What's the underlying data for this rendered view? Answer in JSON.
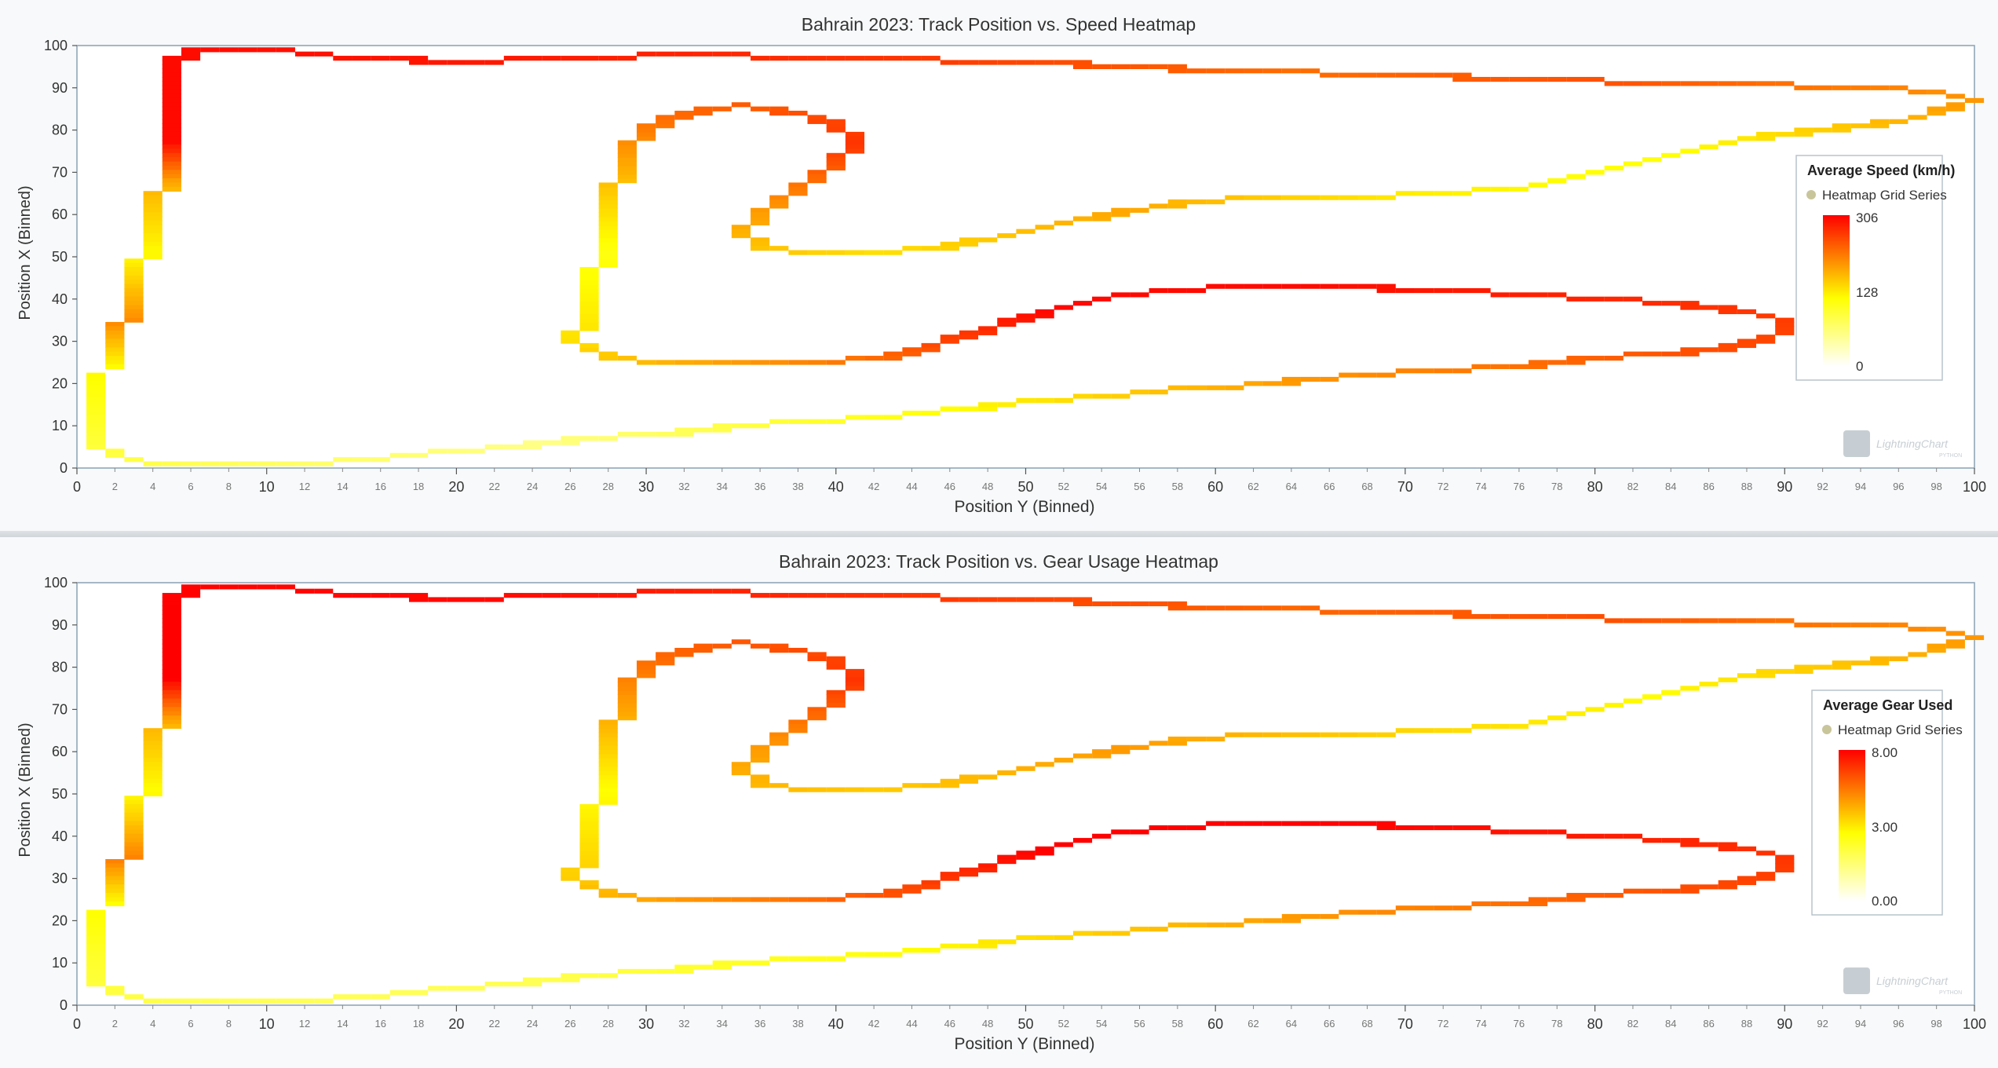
{
  "chart_data": [
    {
      "type": "heatmap",
      "title": "Bahrain 2023: Track Position vs. Speed Heatmap",
      "xlabel": "Position Y (Binned)",
      "ylabel": "Position X (Binned)",
      "xlim": [
        0,
        100
      ],
      "ylim": [
        0,
        100
      ],
      "x_ticks_major": [
        "0",
        "10",
        "20",
        "30",
        "40",
        "50",
        "60",
        "70",
        "80",
        "90",
        "100"
      ],
      "x_ticks_minor": [
        "2",
        "4",
        "6",
        "8",
        "12",
        "14",
        "16",
        "18",
        "22",
        "24",
        "26",
        "28",
        "32",
        "34",
        "36",
        "38",
        "42",
        "44",
        "46",
        "48",
        "52",
        "54",
        "56",
        "58",
        "62",
        "64",
        "66",
        "68",
        "72",
        "74",
        "76",
        "78",
        "82",
        "84",
        "86",
        "88",
        "92",
        "94",
        "96",
        "98"
      ],
      "y_ticks": [
        "0",
        "10",
        "20",
        "30",
        "40",
        "50",
        "60",
        "70",
        "80",
        "90",
        "100"
      ],
      "legend": {
        "title": "Average Speed (km/h)",
        "series_name": "Heatmap Grid Series",
        "max_label": "306",
        "mid_label": "128",
        "min_label": "0",
        "placement": "right"
      },
      "color_scale": {
        "min": 0,
        "mid": 128,
        "max": 306
      },
      "grid": false,
      "track_trace": [
        [
          1,
          22
        ],
        [
          1,
          10
        ],
        [
          1,
          5
        ],
        [
          2,
          3
        ],
        [
          4,
          1
        ],
        [
          6,
          0.5
        ],
        [
          9,
          0.5
        ],
        [
          12,
          1
        ],
        [
          15,
          2
        ],
        [
          19,
          3.5
        ],
        [
          23,
          5
        ],
        [
          27,
          7
        ],
        [
          31,
          8
        ],
        [
          35,
          10
        ],
        [
          39,
          11
        ],
        [
          42,
          12
        ],
        [
          46,
          13.5
        ],
        [
          50,
          15.5
        ],
        [
          54,
          17
        ],
        [
          58,
          18.5
        ],
        [
          63,
          20
        ],
        [
          68,
          22
        ],
        [
          72,
          23
        ],
        [
          76,
          24
        ],
        [
          80,
          26
        ],
        [
          84,
          27
        ],
        [
          88,
          29
        ],
        [
          90,
          32
        ],
        [
          90,
          35
        ],
        [
          88,
          37
        ],
        [
          84,
          39
        ],
        [
          78,
          40.5
        ],
        [
          72,
          42
        ],
        [
          66,
          43
        ],
        [
          60,
          42.5
        ],
        [
          55,
          41
        ],
        [
          52,
          38
        ],
        [
          49,
          34
        ],
        [
          46,
          30
        ],
        [
          44,
          27
        ],
        [
          41,
          25.5
        ],
        [
          37,
          24.5
        ],
        [
          33,
          24.5
        ],
        [
          30,
          25
        ],
        [
          28,
          26
        ],
        [
          27,
          28
        ],
        [
          26,
          31
        ],
        [
          27,
          35
        ],
        [
          27,
          40
        ],
        [
          27,
          45
        ],
        [
          28,
          50
        ],
        [
          28,
          55
        ],
        [
          28,
          60
        ],
        [
          28,
          65
        ],
        [
          29,
          70
        ],
        [
          29,
          75
        ],
        [
          30,
          80
        ],
        [
          32,
          84
        ],
        [
          35,
          85.5
        ],
        [
          38,
          84
        ],
        [
          40,
          81
        ],
        [
          41,
          77
        ],
        [
          40,
          73
        ],
        [
          39,
          69
        ],
        [
          38,
          66
        ],
        [
          37,
          63
        ],
        [
          36,
          60
        ],
        [
          35,
          56
        ],
        [
          36,
          52
        ],
        [
          39,
          51
        ],
        [
          42,
          51
        ],
        [
          45,
          52
        ],
        [
          49,
          55
        ],
        [
          53,
          59
        ],
        [
          57,
          62
        ],
        [
          62,
          64
        ],
        [
          68,
          64
        ],
        [
          72,
          65
        ],
        [
          76,
          66
        ],
        [
          80,
          70
        ],
        [
          84,
          74
        ],
        [
          88,
          78
        ],
        [
          92,
          80
        ],
        [
          96,
          82
        ],
        [
          98,
          84
        ],
        [
          100,
          87
        ],
        [
          98,
          89
        ],
        [
          94,
          90
        ],
        [
          90,
          90.5
        ],
        [
          85,
          91
        ],
        [
          80,
          91.5
        ],
        [
          75,
          92
        ],
        [
          70,
          93
        ],
        [
          65,
          93.5
        ],
        [
          60,
          94
        ],
        [
          55,
          95
        ],
        [
          50,
          96
        ],
        [
          45,
          96.5
        ],
        [
          40,
          97
        ],
        [
          35,
          97.5
        ],
        [
          30,
          97.5
        ],
        [
          25,
          97
        ],
        [
          20,
          96
        ],
        [
          15,
          97
        ],
        [
          11,
          98.5
        ],
        [
          8,
          99
        ],
        [
          6,
          98.5
        ],
        [
          5,
          96
        ],
        [
          5,
          92
        ],
        [
          5,
          87
        ],
        [
          4.5,
          82
        ],
        [
          4.5,
          76
        ],
        [
          4.5,
          70
        ],
        [
          4.5,
          66
        ],
        [
          3.5,
          60
        ],
        [
          3.5,
          55
        ],
        [
          3.5,
          50
        ],
        [
          2.5,
          45
        ],
        [
          2.5,
          40
        ],
        [
          2.5,
          35
        ],
        [
          1.5,
          32
        ],
        [
          1.5,
          28
        ],
        [
          1.5,
          24
        ]
      ],
      "speed_profile": [
        [
          0,
          130
        ],
        [
          2,
          110
        ],
        [
          5,
          80
        ],
        [
          8,
          60
        ],
        [
          12,
          120
        ],
        [
          16,
          200
        ],
        [
          20,
          250
        ],
        [
          24,
          280
        ],
        [
          27,
          300
        ],
        [
          30,
          300
        ],
        [
          33,
          220
        ],
        [
          36,
          150
        ],
        [
          40,
          120
        ],
        [
          43,
          170
        ],
        [
          46,
          230
        ],
        [
          49,
          270
        ],
        [
          52,
          200
        ],
        [
          55,
          150
        ],
        [
          58,
          190
        ],
        [
          61,
          140
        ],
        [
          64,
          120
        ],
        [
          68,
          200
        ],
        [
          72,
          250
        ],
        [
          75,
          230
        ],
        [
          79,
          270
        ],
        [
          83,
          290
        ],
        [
          87,
          300
        ],
        [
          90,
          300
        ],
        [
          92,
          180
        ],
        [
          95,
          130
        ],
        [
          98,
          210
        ],
        [
          100,
          130
        ]
      ]
    },
    {
      "type": "heatmap",
      "title": "Bahrain 2023: Track Position vs. Gear Usage Heatmap",
      "xlabel": "Position Y (Binned)",
      "ylabel": "Position X (Binned)",
      "xlim": [
        0,
        100
      ],
      "ylim": [
        0,
        100
      ],
      "x_ticks_major": [
        "0",
        "10",
        "20",
        "30",
        "40",
        "50",
        "60",
        "70",
        "80",
        "90",
        "100"
      ],
      "x_ticks_minor": [
        "2",
        "4",
        "6",
        "8",
        "12",
        "14",
        "16",
        "18",
        "22",
        "24",
        "26",
        "28",
        "32",
        "34",
        "36",
        "38",
        "42",
        "44",
        "46",
        "48",
        "52",
        "54",
        "56",
        "58",
        "62",
        "64",
        "66",
        "68",
        "72",
        "74",
        "76",
        "78",
        "82",
        "84",
        "86",
        "88",
        "92",
        "94",
        "96",
        "98"
      ],
      "y_ticks": [
        "0",
        "10",
        "20",
        "30",
        "40",
        "50",
        "60",
        "70",
        "80",
        "90",
        "100"
      ],
      "legend": {
        "title": "Average Gear Used",
        "series_name": "Heatmap Grid Series",
        "max_label": "8.00",
        "mid_label": "3.00",
        "min_label": "0.00",
        "placement": "right"
      },
      "color_scale": {
        "min": 0,
        "mid": 3,
        "max": 8
      },
      "grid": false,
      "track_trace": "same as speed heatmap",
      "gear_profile": [
        [
          0,
          3
        ],
        [
          2,
          2.5
        ],
        [
          5,
          2
        ],
        [
          8,
          2
        ],
        [
          12,
          3
        ],
        [
          16,
          5
        ],
        [
          20,
          6.5
        ],
        [
          24,
          7.5
        ],
        [
          27,
          8
        ],
        [
          30,
          8
        ],
        [
          33,
          6
        ],
        [
          36,
          4
        ],
        [
          40,
          3
        ],
        [
          43,
          4.5
        ],
        [
          46,
          6
        ],
        [
          49,
          7
        ],
        [
          52,
          5
        ],
        [
          55,
          4
        ],
        [
          58,
          5
        ],
        [
          61,
          3.8
        ],
        [
          64,
          3
        ],
        [
          68,
          5
        ],
        [
          72,
          6.5
        ],
        [
          75,
          6
        ],
        [
          79,
          7
        ],
        [
          83,
          7.8
        ],
        [
          87,
          8
        ],
        [
          90,
          8
        ],
        [
          92,
          4.5
        ],
        [
          95,
          3
        ],
        [
          98,
          5.5
        ],
        [
          100,
          3
        ]
      ]
    }
  ],
  "watermark": {
    "brand": "LightningChart",
    "sub": "PYTHON"
  },
  "colors": {
    "low": "#ffffff",
    "mid": "#ffff00",
    "high": "#ff0000"
  }
}
